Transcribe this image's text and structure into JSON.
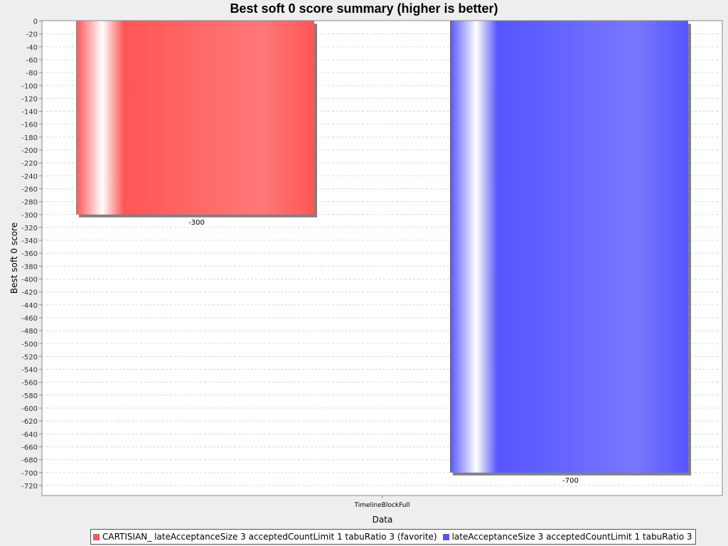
{
  "chart_data": {
    "type": "bar",
    "title": "Best soft 0 score summary (higher is better)",
    "xlabel": "Data",
    "ylabel": "Best soft 0 score",
    "categories": [
      "TimelineBlockFull"
    ],
    "ylim": [
      -740,
      0
    ],
    "ytick_step": 20,
    "grid": true,
    "legend_position": "bottom",
    "series": [
      {
        "name": "CARTISIAN_ lateAcceptanceSize 3 acceptedCountLimit 1 tabuRatio 3 (favorite)",
        "values": [
          -300
        ],
        "labels": [
          "-300"
        ],
        "color": "#ff5555"
      },
      {
        "name": "lateAcceptanceSize 3 acceptedCountLimit 1 tabuRatio 3",
        "values": [
          -700
        ],
        "labels": [
          "-700"
        ],
        "color": "#5555ff"
      }
    ]
  }
}
